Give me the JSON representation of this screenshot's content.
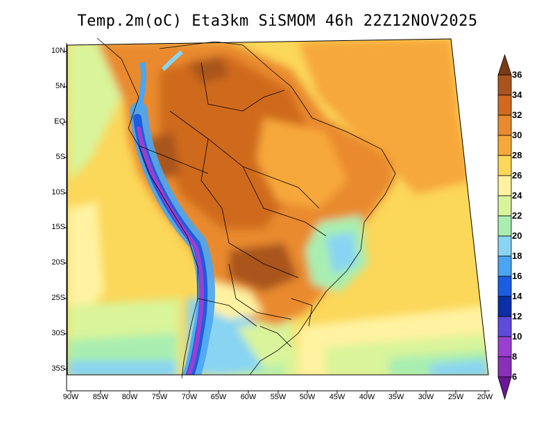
{
  "title": "Temp.2m(oC) Eta3km SiSMOM 46h 22Z12NOV2025",
  "lat_labels": [
    "10N",
    "5N",
    "EQ",
    "5S",
    "10S",
    "15S",
    "20S",
    "25S",
    "30S",
    "35S"
  ],
  "lon_labels": [
    "90W",
    "85W",
    "80W",
    "75W",
    "70W",
    "65W",
    "60W",
    "55W",
    "50W",
    "45W",
    "40W",
    "35W",
    "30W",
    "25W",
    "20W"
  ],
  "colorbar": {
    "levels": [
      "36",
      "34",
      "32",
      "30",
      "28",
      "26",
      "24",
      "22",
      "20",
      "18",
      "16",
      "14",
      "12",
      "10",
      "8",
      "6"
    ],
    "colors": [
      "#7a3a14",
      "#a9541f",
      "#cf6a1f",
      "#e98a2f",
      "#f7a83b",
      "#fbd75a",
      "#fff2a0",
      "#d9f49a",
      "#a9eeb0",
      "#88d4f2",
      "#4ba5f2",
      "#1a5de0",
      "#0b2fa8",
      "#5f4bd9",
      "#9a3fd1",
      "#6a1796"
    ]
  },
  "map": {
    "region": "South America",
    "variable": "2 m air temperature (°C)"
  }
}
